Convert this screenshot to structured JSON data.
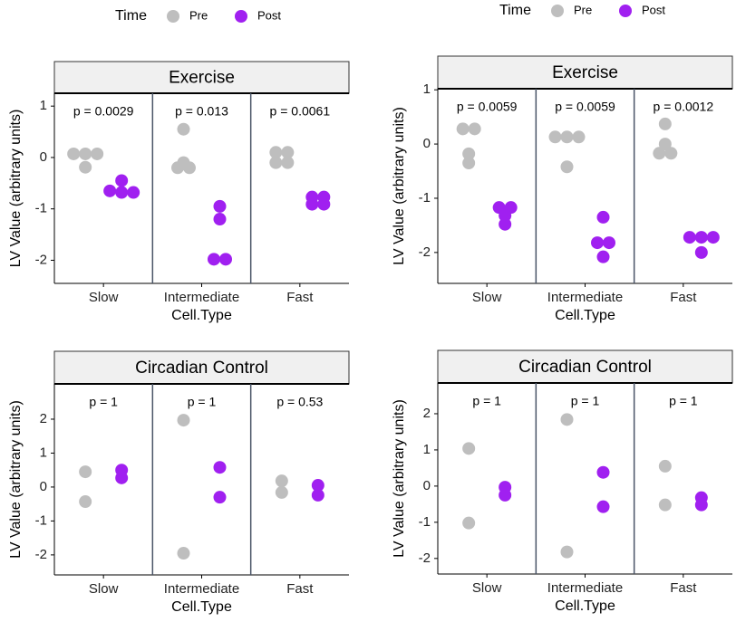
{
  "chart_data": [
    {
      "type": "strip",
      "title": "Exercise",
      "ylabel": "LV Value (arbitrary units)",
      "xlabel": "Cell.Type",
      "categories": [
        "Slow",
        "Intermediate",
        "Fast"
      ],
      "annotations": [
        "p = 0.0029",
        "p = 0.013",
        "p = 0.0061"
      ],
      "legend": "top",
      "legend_title": "Time",
      "series": [
        {
          "name": "Pre",
          "color": "#bebebe",
          "values": [
            [
              0.07,
              0.07,
              0.07,
              -0.19
            ],
            [
              0.55,
              -0.1,
              -0.2,
              -0.2
            ],
            [
              0.1,
              0.1,
              -0.1,
              -0.1
            ]
          ]
        },
        {
          "name": "Post",
          "color": "#a020f0",
          "values": [
            [
              -0.45,
              -0.65,
              -0.68,
              -0.68
            ],
            [
              -0.95,
              -1.2,
              -1.98,
              -1.98
            ],
            [
              -0.77,
              -0.77,
              -0.91,
              -0.91
            ]
          ]
        }
      ],
      "ylim": [
        -2.45,
        1.25
      ],
      "yticks": [
        -2,
        -1,
        0,
        1
      ]
    },
    {
      "type": "strip",
      "title": "Exercise",
      "ylabel": "LV Value (arbitrary units)",
      "xlabel": "Cell.Type",
      "categories": [
        "Slow",
        "Intermediate",
        "Fast"
      ],
      "annotations": [
        "p = 0.0059",
        "p = 0.0059",
        "p = 0.0012"
      ],
      "legend": "top",
      "legend_title": "Time",
      "series": [
        {
          "name": "Pre",
          "color": "#bebebe",
          "values": [
            [
              0.28,
              0.28,
              -0.18,
              -0.35
            ],
            [
              0.13,
              0.13,
              0.13,
              -0.42
            ],
            [
              0.37,
              0,
              -0.17,
              -0.17
            ]
          ]
        },
        {
          "name": "Post",
          "color": "#a020f0",
          "values": [
            [
              -1.17,
              -1.17,
              -1.32,
              -1.48
            ],
            [
              -1.35,
              -1.82,
              -1.82,
              -2.08
            ],
            [
              -1.72,
              -1.72,
              -1.72,
              -2.0
            ]
          ]
        }
      ],
      "ylim": [
        -2.57,
        1.02
      ],
      "yticks": [
        -2,
        -1,
        0,
        1
      ]
    },
    {
      "type": "strip",
      "title": "Circadian Control",
      "ylabel": "LV Value (arbitrary units)",
      "xlabel": "Cell.Type",
      "categories": [
        "Slow",
        "Intermediate",
        "Fast"
      ],
      "annotations": [
        "p = 1",
        "p = 1",
        "p = 0.53"
      ],
      "series": [
        {
          "name": "Pre",
          "color": "#bebebe",
          "values": [
            [
              0.45,
              -0.43
            ],
            [
              1.97,
              -1.95
            ],
            [
              0.18,
              -0.16
            ]
          ]
        },
        {
          "name": "Post",
          "color": "#a020f0",
          "values": [
            [
              0.5,
              0.27
            ],
            [
              0.58,
              -0.3
            ],
            [
              0.05,
              -0.24
            ]
          ]
        }
      ],
      "ylim": [
        -2.59,
        3.04
      ],
      "yticks": [
        -2,
        -1,
        0,
        1,
        2
      ]
    },
    {
      "type": "strip",
      "title": "Circadian Control",
      "ylabel": "LV Value (arbitrary units)",
      "xlabel": "Cell.Type",
      "categories": [
        "Slow",
        "Intermediate",
        "Fast"
      ],
      "annotations": [
        "p = 1",
        "p = 1",
        "p = 1"
      ],
      "series": [
        {
          "name": "Pre",
          "color": "#bebebe",
          "values": [
            [
              1.04,
              -1.02
            ],
            [
              1.84,
              -1.82
            ],
            [
              0.55,
              -0.52
            ]
          ]
        },
        {
          "name": "Post",
          "color": "#a020f0",
          "values": [
            [
              -0.03,
              -0.25
            ],
            [
              0.38,
              -0.57
            ],
            [
              -0.32,
              -0.52
            ]
          ]
        }
      ],
      "ylim": [
        -2.43,
        2.85
      ],
      "yticks": [
        -2,
        -1,
        0,
        1,
        2
      ]
    }
  ]
}
